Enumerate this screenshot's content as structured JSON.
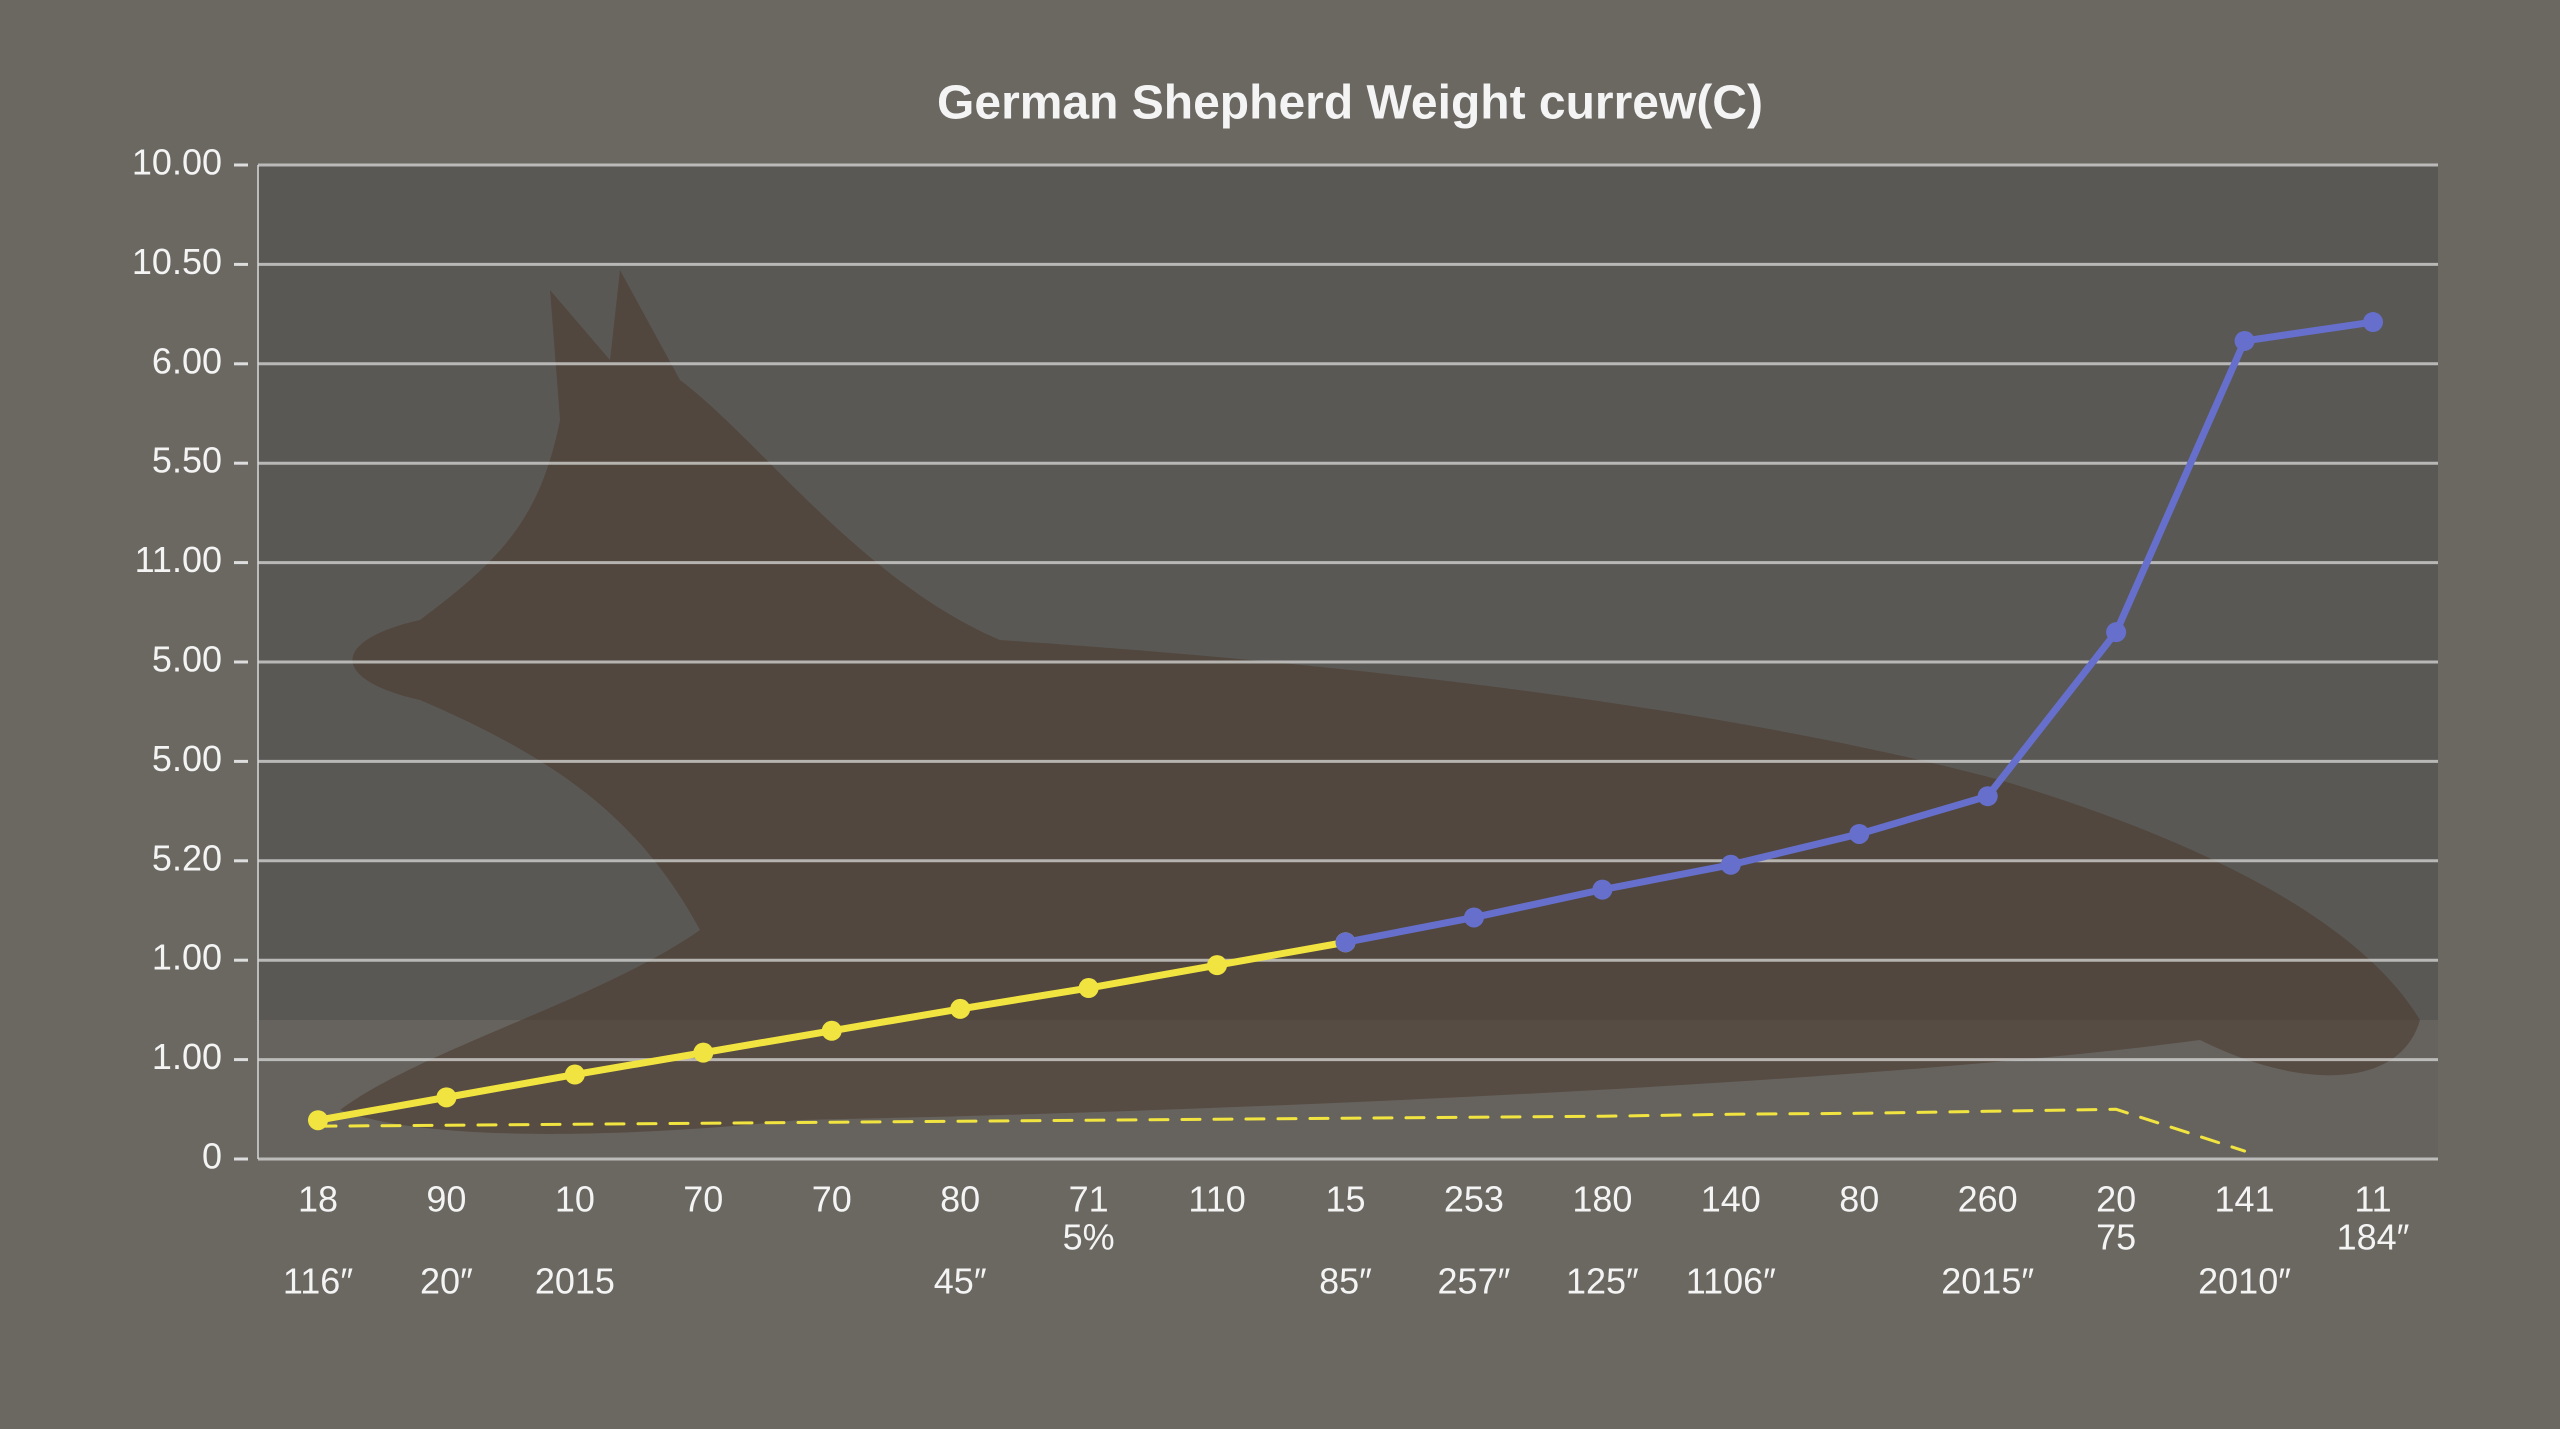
{
  "chart_data": {
    "type": "line",
    "title": "German Shepherd Weight currew(C)",
    "categories": [
      "18",
      "90",
      "10",
      "70",
      "70",
      "80",
      "71",
      "110",
      "15",
      "253",
      "180",
      "140",
      "80",
      "260",
      "20",
      "141",
      "11"
    ],
    "categories_row2": [
      null,
      null,
      null,
      null,
      null,
      null,
      "5%",
      null,
      null,
      null,
      null,
      null,
      null,
      null,
      "75",
      null,
      "184″"
    ],
    "categories_row3": [
      "116″",
      "20″",
      "2015",
      null,
      null,
      "45″",
      null,
      null,
      "85″",
      "257″",
      "125″",
      "1106″",
      null,
      "2015″",
      null,
      "2010″",
      null
    ],
    "series": [
      {
        "color": "#f2e440",
        "values": [
          0.39,
          0.62,
          0.85,
          1.07,
          1.29,
          1.51,
          1.72,
          1.95,
          2.18,
          null,
          null,
          null,
          null,
          null,
          null,
          null,
          null
        ]
      },
      {
        "color": "#6670cc",
        "values": [
          null,
          null,
          null,
          null,
          null,
          null,
          null,
          null,
          2.18,
          2.43,
          2.71,
          2.96,
          3.27,
          3.65,
          5.3,
          8.23,
          8.42
        ]
      },
      {
        "color": "#f2e440",
        "dashed": true,
        "values": [
          0.33,
          0.34,
          0.35,
          0.36,
          0.37,
          0.38,
          0.39,
          0.4,
          0.41,
          0.42,
          0.43,
          0.45,
          0.46,
          0.48,
          0.5,
          0.08,
          null
        ]
      }
    ],
    "ylim": [
      0,
      10
    ],
    "yticks": [
      {
        "value": 10,
        "label": "10.00"
      },
      {
        "value": 9,
        "label": "10.50"
      },
      {
        "value": 8,
        "label": "6.00"
      },
      {
        "value": 7,
        "label": "5.50"
      },
      {
        "value": 6,
        "label": "11.00"
      },
      {
        "value": 5,
        "label": "5.00"
      },
      {
        "value": 4,
        "label": "5.00"
      },
      {
        "value": 3,
        "label": "5.20"
      },
      {
        "value": 2,
        "label": "1.00"
      },
      {
        "value": 1,
        "label": "1.00"
      },
      0
    ],
    "grid": true
  }
}
